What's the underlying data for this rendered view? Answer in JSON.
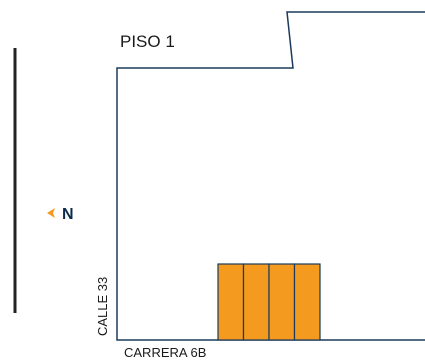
{
  "floor_label": "PISO 1",
  "north_label": "N",
  "street_labels": {
    "side_street": "CALLE 33",
    "bottom_street": "CARRERA 6B"
  },
  "parking_spaces": {
    "count": 4,
    "fill_color": "#f39a1f",
    "stroke_color": "#1b3a5c"
  },
  "colors": {
    "outline": "#1b3a5c",
    "north_arrow": "#f39a1f",
    "north_letter": "#0b2d4a",
    "scale_line": "#222222"
  }
}
